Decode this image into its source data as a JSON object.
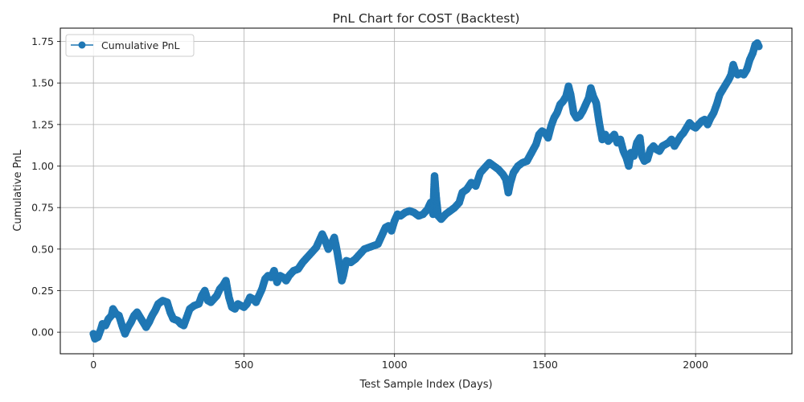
{
  "chart_data": {
    "type": "line",
    "title": "PnL Chart for COST (Backtest)",
    "xlabel": "Test Sample Index (Days)",
    "ylabel": "Cumulative PnL",
    "xlim": [
      -110,
      2320
    ],
    "ylim": [
      -0.13,
      1.83
    ],
    "xticks": [
      0,
      500,
      1000,
      1500,
      2000
    ],
    "yticks": [
      0.0,
      0.25,
      0.5,
      0.75,
      1.0,
      1.25,
      1.5,
      1.75
    ],
    "xtick_labels": [
      "0",
      "500",
      "1000",
      "1500",
      "2000"
    ],
    "ytick_labels": [
      "0.00",
      "0.25",
      "0.50",
      "0.75",
      "1.00",
      "1.25",
      "1.50",
      "1.75"
    ],
    "grid": true,
    "legend_position": "upper-left",
    "series": [
      {
        "name": "Cumulative PnL",
        "color": "#1f77b4",
        "marker": "circle",
        "points": [
          [
            0,
            -0.01
          ],
          [
            5,
            -0.04
          ],
          [
            15,
            -0.03
          ],
          [
            25,
            0.02
          ],
          [
            30,
            0.05
          ],
          [
            40,
            0.04
          ],
          [
            50,
            0.08
          ],
          [
            60,
            0.1
          ],
          [
            65,
            0.14
          ],
          [
            75,
            0.11
          ],
          [
            85,
            0.1
          ],
          [
            95,
            0.04
          ],
          [
            105,
            -0.01
          ],
          [
            115,
            0.03
          ],
          [
            125,
            0.06
          ],
          [
            135,
            0.1
          ],
          [
            145,
            0.12
          ],
          [
            155,
            0.09
          ],
          [
            165,
            0.06
          ],
          [
            175,
            0.03
          ],
          [
            185,
            0.06
          ],
          [
            195,
            0.1
          ],
          [
            205,
            0.13
          ],
          [
            215,
            0.17
          ],
          [
            230,
            0.19
          ],
          [
            245,
            0.18
          ],
          [
            255,
            0.12
          ],
          [
            265,
            0.08
          ],
          [
            280,
            0.07
          ],
          [
            290,
            0.05
          ],
          [
            300,
            0.04
          ],
          [
            310,
            0.09
          ],
          [
            320,
            0.14
          ],
          [
            335,
            0.16
          ],
          [
            350,
            0.17
          ],
          [
            360,
            0.22
          ],
          [
            370,
            0.25
          ],
          [
            380,
            0.19
          ],
          [
            390,
            0.18
          ],
          [
            400,
            0.2
          ],
          [
            410,
            0.22
          ],
          [
            420,
            0.26
          ],
          [
            430,
            0.28
          ],
          [
            440,
            0.31
          ],
          [
            450,
            0.21
          ],
          [
            460,
            0.15
          ],
          [
            470,
            0.14
          ],
          [
            480,
            0.17
          ],
          [
            490,
            0.16
          ],
          [
            500,
            0.15
          ],
          [
            510,
            0.17
          ],
          [
            520,
            0.21
          ],
          [
            530,
            0.2
          ],
          [
            540,
            0.18
          ],
          [
            550,
            0.22
          ],
          [
            560,
            0.26
          ],
          [
            570,
            0.32
          ],
          [
            580,
            0.34
          ],
          [
            590,
            0.33
          ],
          [
            600,
            0.37
          ],
          [
            610,
            0.3
          ],
          [
            620,
            0.34
          ],
          [
            630,
            0.33
          ],
          [
            640,
            0.31
          ],
          [
            650,
            0.34
          ],
          [
            665,
            0.37
          ],
          [
            680,
            0.38
          ],
          [
            695,
            0.42
          ],
          [
            710,
            0.45
          ],
          [
            725,
            0.48
          ],
          [
            740,
            0.51
          ],
          [
            750,
            0.55
          ],
          [
            760,
            0.59
          ],
          [
            770,
            0.55
          ],
          [
            780,
            0.5
          ],
          [
            790,
            0.53
          ],
          [
            800,
            0.57
          ],
          [
            810,
            0.48
          ],
          [
            820,
            0.37
          ],
          [
            825,
            0.31
          ],
          [
            830,
            0.34
          ],
          [
            840,
            0.43
          ],
          [
            855,
            0.42
          ],
          [
            870,
            0.44
          ],
          [
            885,
            0.47
          ],
          [
            900,
            0.5
          ],
          [
            915,
            0.51
          ],
          [
            930,
            0.52
          ],
          [
            945,
            0.53
          ],
          [
            960,
            0.59
          ],
          [
            970,
            0.63
          ],
          [
            980,
            0.64
          ],
          [
            990,
            0.61
          ],
          [
            1000,
            0.67
          ],
          [
            1010,
            0.71
          ],
          [
            1020,
            0.7
          ],
          [
            1035,
            0.72
          ],
          [
            1050,
            0.73
          ],
          [
            1065,
            0.72
          ],
          [
            1080,
            0.7
          ],
          [
            1095,
            0.71
          ],
          [
            1110,
            0.74
          ],
          [
            1120,
            0.78
          ],
          [
            1128,
            0.71
          ],
          [
            1133,
            0.94
          ],
          [
            1138,
            0.82
          ],
          [
            1145,
            0.7
          ],
          [
            1155,
            0.68
          ],
          [
            1170,
            0.71
          ],
          [
            1185,
            0.73
          ],
          [
            1200,
            0.75
          ],
          [
            1215,
            0.78
          ],
          [
            1225,
            0.84
          ],
          [
            1240,
            0.86
          ],
          [
            1255,
            0.9
          ],
          [
            1270,
            0.88
          ],
          [
            1285,
            0.96
          ],
          [
            1300,
            0.99
          ],
          [
            1315,
            1.02
          ],
          [
            1330,
            1.0
          ],
          [
            1345,
            0.98
          ],
          [
            1360,
            0.95
          ],
          [
            1370,
            0.92
          ],
          [
            1378,
            0.84
          ],
          [
            1385,
            0.9
          ],
          [
            1395,
            0.96
          ],
          [
            1410,
            1.0
          ],
          [
            1425,
            1.02
          ],
          [
            1440,
            1.03
          ],
          [
            1455,
            1.08
          ],
          [
            1470,
            1.13
          ],
          [
            1480,
            1.19
          ],
          [
            1490,
            1.21
          ],
          [
            1500,
            1.2
          ],
          [
            1510,
            1.17
          ],
          [
            1520,
            1.24
          ],
          [
            1530,
            1.29
          ],
          [
            1540,
            1.32
          ],
          [
            1550,
            1.37
          ],
          [
            1560,
            1.39
          ],
          [
            1570,
            1.42
          ],
          [
            1578,
            1.48
          ],
          [
            1585,
            1.43
          ],
          [
            1595,
            1.32
          ],
          [
            1605,
            1.29
          ],
          [
            1615,
            1.3
          ],
          [
            1625,
            1.33
          ],
          [
            1635,
            1.37
          ],
          [
            1645,
            1.41
          ],
          [
            1652,
            1.47
          ],
          [
            1660,
            1.42
          ],
          [
            1670,
            1.38
          ],
          [
            1680,
            1.26
          ],
          [
            1690,
            1.16
          ],
          [
            1700,
            1.19
          ],
          [
            1710,
            1.15
          ],
          [
            1720,
            1.17
          ],
          [
            1730,
            1.19
          ],
          [
            1740,
            1.14
          ],
          [
            1750,
            1.16
          ],
          [
            1760,
            1.09
          ],
          [
            1770,
            1.05
          ],
          [
            1778,
            1.0
          ],
          [
            1785,
            1.08
          ],
          [
            1795,
            1.06
          ],
          [
            1805,
            1.14
          ],
          [
            1815,
            1.17
          ],
          [
            1822,
            1.06
          ],
          [
            1830,
            1.03
          ],
          [
            1840,
            1.04
          ],
          [
            1850,
            1.1
          ],
          [
            1860,
            1.12
          ],
          [
            1870,
            1.1
          ],
          [
            1880,
            1.09
          ],
          [
            1890,
            1.12
          ],
          [
            1900,
            1.13
          ],
          [
            1910,
            1.14
          ],
          [
            1920,
            1.16
          ],
          [
            1930,
            1.12
          ],
          [
            1940,
            1.15
          ],
          [
            1950,
            1.18
          ],
          [
            1960,
            1.2
          ],
          [
            1970,
            1.23
          ],
          [
            1980,
            1.26
          ],
          [
            1990,
            1.24
          ],
          [
            2000,
            1.23
          ],
          [
            2010,
            1.25
          ],
          [
            2020,
            1.27
          ],
          [
            2030,
            1.28
          ],
          [
            2040,
            1.25
          ],
          [
            2050,
            1.29
          ],
          [
            2060,
            1.32
          ],
          [
            2070,
            1.37
          ],
          [
            2080,
            1.43
          ],
          [
            2090,
            1.46
          ],
          [
            2100,
            1.49
          ],
          [
            2110,
            1.52
          ],
          [
            2118,
            1.55
          ],
          [
            2125,
            1.61
          ],
          [
            2132,
            1.57
          ],
          [
            2140,
            1.55
          ],
          [
            2150,
            1.56
          ],
          [
            2160,
            1.55
          ],
          [
            2170,
            1.58
          ],
          [
            2180,
            1.64
          ],
          [
            2190,
            1.68
          ],
          [
            2198,
            1.73
          ],
          [
            2205,
            1.74
          ],
          [
            2210,
            1.72
          ]
        ]
      }
    ]
  }
}
